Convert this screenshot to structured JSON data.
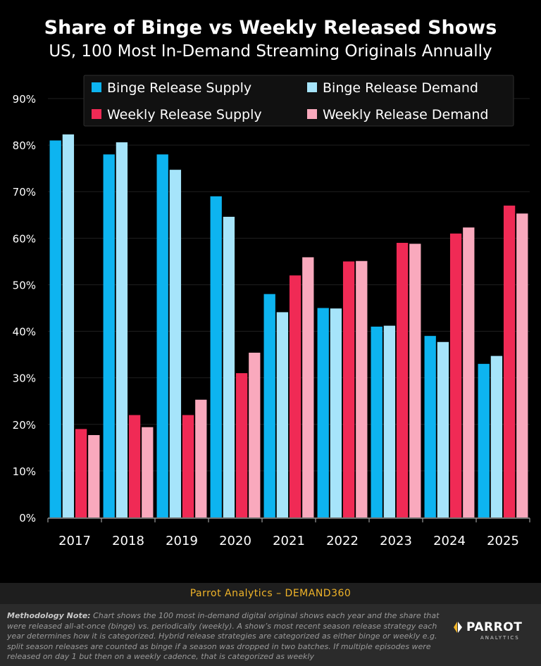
{
  "chart_data": {
    "type": "bar",
    "title": "Share of Binge vs Weekly Released Shows",
    "subtitle": "US, 100 Most In-Demand Streaming Originals Annually",
    "categories": [
      "2017",
      "2018",
      "2019",
      "2020",
      "2021",
      "2022",
      "2023",
      "2024",
      "2025"
    ],
    "series": [
      {
        "name": "Binge Release Supply",
        "color": "#0db4f0",
        "values": [
          81,
          78,
          78,
          69,
          48,
          45,
          41,
          39,
          33
        ]
      },
      {
        "name": "Binge Release Demand",
        "color": "#a6e4fa",
        "values": [
          82.3,
          80.6,
          74.7,
          64.6,
          44.1,
          44.9,
          41.2,
          37.7,
          34.7
        ]
      },
      {
        "name": "Weekly Release Supply",
        "color": "#f02a55",
        "values": [
          19,
          22,
          22,
          31,
          52,
          55,
          59,
          61,
          67
        ]
      },
      {
        "name": "Weekly Release Demand",
        "color": "#f9a9bd",
        "values": [
          17.7,
          19.4,
          25.3,
          35.4,
          55.9,
          55.1,
          58.8,
          62.3,
          65.3
        ]
      }
    ],
    "ylim": [
      0,
      90
    ],
    "yticks": [
      "0%",
      "10%",
      "20%",
      "30%",
      "40%",
      "50%",
      "60%",
      "70%",
      "80%",
      "90%"
    ],
    "grid": true,
    "legend": "top"
  },
  "footer": {
    "source": "Parrot Analytics – DEMAND360",
    "note_label": "Methodology Note:",
    "note_text": " Chart shows the 100 most in-demand digital original shows each year and the share that were released all-at-once (binge) vs. periodically (weekly).  A show’s most recent season release strategy each year determines how it is categorized.  Hybrid release strategies are categorized as either binge or weekly e.g. split season releases are counted as binge if a season was dropped in two batches. If multiple episodes were released on day 1 but then on a weekly cadence, that is categorized as weekly",
    "logo_word": "PARROT",
    "logo_sub": "ANALYTICS",
    "logo_color": "#f0b429"
  }
}
